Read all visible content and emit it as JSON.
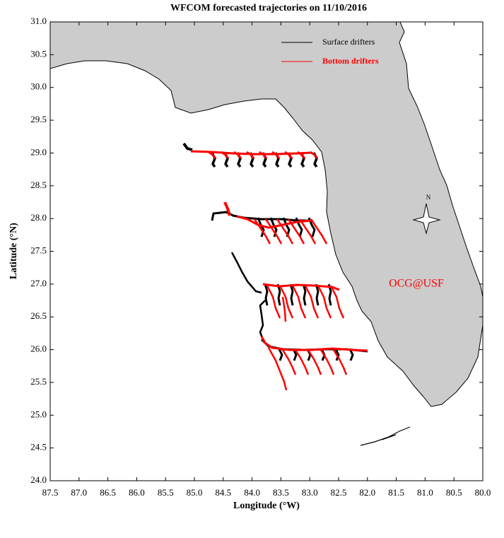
{
  "chart_data": {
    "type": "map",
    "title": "WFCOM forecasted trajectories on 11/10/2016",
    "x_label": "Longitude (°W)",
    "y_label": "Latitude (°N)",
    "xlim": [
      87.5,
      80.0
    ],
    "ylim": [
      24.0,
      31.0
    ],
    "xticks": [
      87.5,
      {
        "value": 87,
        "label": "87.0"
      },
      86.5,
      {
        "value": 86,
        "label": "86.0"
      },
      85.5,
      {
        "value": 85,
        "label": "85.0"
      },
      84.5,
      {
        "value": 84,
        "label": "84.0"
      },
      83.5,
      {
        "value": 83,
        "label": "83.0"
      },
      82.5,
      {
        "value": 82,
        "label": "82.0"
      },
      81.5,
      {
        "value": 81,
        "label": "81.0"
      },
      80.5,
      {
        "value": 80,
        "label": "80.0"
      }
    ],
    "yticks": [
      {
        "value": 24,
        "label": "24.0"
      },
      24.5,
      {
        "value": 25,
        "label": "25.0"
      },
      25.5,
      {
        "value": 26,
        "label": "26.0"
      },
      26.5,
      {
        "value": 27,
        "label": "27.0"
      },
      27.5,
      {
        "value": 28,
        "label": "28.0"
      },
      28.5,
      {
        "value": 29,
        "label": "29.0"
      },
      29.5,
      {
        "value": 30,
        "label": "30.0"
      },
      30.5,
      {
        "value": 31,
        "label": "31.0"
      }
    ],
    "series": [
      {
        "name": "Surface drifters",
        "color": "#000000"
      },
      {
        "name": "Bottom drifters",
        "color": "#ff0000"
      }
    ],
    "annotation": "OCG@USF",
    "compass_label": "N"
  }
}
